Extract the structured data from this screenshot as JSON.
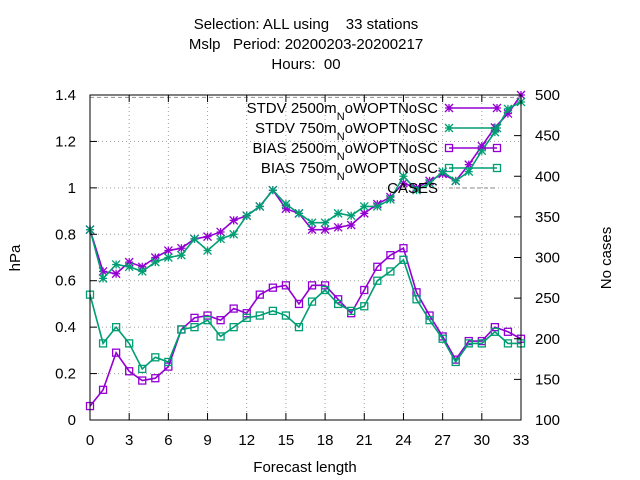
{
  "chart_data": {
    "type": "line",
    "title_lines": [
      "Selection: ALL using    33 stations",
      "Mslp   Period: 20200203-20200217",
      "Hours:  00"
    ],
    "xlabel": "Forecast length",
    "ylabel": "hPa",
    "y2label": "No cases",
    "xlim": [
      0,
      33
    ],
    "ylim": [
      0,
      1.4
    ],
    "y2lim": [
      100,
      500
    ],
    "x_ticks": [
      "0",
      "3",
      "6",
      "9",
      "12",
      "15",
      "18",
      "21",
      "24",
      "27",
      "30",
      "33"
    ],
    "y_ticks": [
      "0",
      "0.2",
      "0.4",
      "0.6",
      "0.8",
      "1",
      "1.2",
      "1.4"
    ],
    "y2_ticks": [
      "100",
      "150",
      "200",
      "250",
      "300",
      "350",
      "400",
      "450",
      "500"
    ],
    "grid": true,
    "legend_position": "top-right",
    "x": [
      0,
      1,
      2,
      3,
      4,
      5,
      6,
      7,
      8,
      9,
      10,
      11,
      12,
      13,
      14,
      15,
      16,
      17,
      18,
      19,
      20,
      21,
      22,
      23,
      24,
      25,
      26,
      27,
      28,
      29,
      30,
      31,
      32,
      33
    ],
    "series": [
      {
        "name": "STDV 2500m",
        "name_sub": "N",
        "name_rest": "oWOPTNoSC",
        "color": "#9400d3",
        "marker": "asterisk",
        "axis": "y",
        "values": [
          0.82,
          0.64,
          0.63,
          0.68,
          0.66,
          0.7,
          0.73,
          0.74,
          0.78,
          0.79,
          0.81,
          0.86,
          0.88,
          0.92,
          0.99,
          0.91,
          0.89,
          0.82,
          0.82,
          0.83,
          0.84,
          0.89,
          0.93,
          0.96,
          1.02,
          1.0,
          1.03,
          1.06,
          1.03,
          1.1,
          1.18,
          1.26,
          1.32,
          1.4
        ]
      },
      {
        "name": "STDV 750m",
        "name_sub": "N",
        "name_rest": "oWOPTNoSC",
        "color": "#009e73",
        "marker": "asterisk",
        "axis": "y",
        "values": [
          0.82,
          0.61,
          0.67,
          0.66,
          0.64,
          0.68,
          0.7,
          0.71,
          0.78,
          0.73,
          0.78,
          0.8,
          0.88,
          0.92,
          0.99,
          0.93,
          0.89,
          0.85,
          0.85,
          0.89,
          0.88,
          0.92,
          0.92,
          0.95,
          1.05,
          0.99,
          1.02,
          1.07,
          1.03,
          1.07,
          1.16,
          1.24,
          1.34,
          1.37
        ]
      },
      {
        "name": "BIAS 2500m",
        "name_sub": "N",
        "name_rest": "oWOPTNoSC",
        "color": "#9400d3",
        "marker": "square",
        "axis": "y",
        "values": [
          0.06,
          0.13,
          0.29,
          0.21,
          0.17,
          0.18,
          0.23,
          0.39,
          0.44,
          0.45,
          0.43,
          0.48,
          0.46,
          0.54,
          0.57,
          0.58,
          0.5,
          0.58,
          0.58,
          0.52,
          0.46,
          0.56,
          0.66,
          0.71,
          0.74,
          0.55,
          0.45,
          0.36,
          0.26,
          0.34,
          0.34,
          0.4,
          0.38,
          0.35
        ]
      },
      {
        "name": "BIAS 750m",
        "name_sub": "N",
        "name_rest": "oWOPTNoSC",
        "color": "#009e73",
        "marker": "square",
        "axis": "y",
        "values": [
          0.54,
          0.33,
          0.4,
          0.33,
          0.22,
          0.27,
          0.25,
          0.39,
          0.4,
          0.43,
          0.36,
          0.4,
          0.44,
          0.45,
          0.47,
          0.45,
          0.4,
          0.51,
          0.56,
          0.5,
          0.47,
          0.49,
          0.6,
          0.64,
          0.69,
          0.52,
          0.43,
          0.35,
          0.25,
          0.33,
          0.33,
          0.38,
          0.33,
          0.33
        ]
      },
      {
        "name": "CASES",
        "color": "#a0a0a0",
        "marker": "none",
        "dashed": true,
        "axis": "y2",
        "values": [
          497,
          497,
          497,
          497,
          497,
          497,
          497,
          497,
          497,
          497,
          497,
          497,
          497,
          497,
          497,
          497,
          497,
          497,
          497,
          497,
          497,
          497,
          497,
          497,
          497,
          497,
          497,
          497,
          497,
          497,
          497,
          497,
          497,
          497
        ]
      }
    ]
  }
}
